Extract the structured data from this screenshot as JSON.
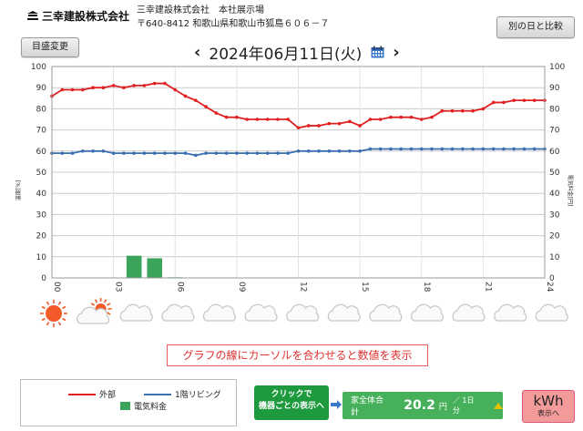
{
  "header": {
    "logo_text": "三幸建設株式会社",
    "company_name": "三幸建設株式会社　本社展示場",
    "address": "〒640-8412 和歌山県和歌山市狐島６０６－７",
    "compare_button": "別の日と比較",
    "scale_button": "目盛変更"
  },
  "date": {
    "label": "2024年06月11日(火)",
    "prev": "‹",
    "next": "›",
    "calendar_icon": "calendar-icon"
  },
  "chart_data": {
    "type": "line",
    "x_ticks": [
      "00",
      "03",
      "06",
      "09",
      "12",
      "15",
      "18",
      "21",
      "24"
    ],
    "xlim": [
      0,
      24
    ],
    "ylim": [
      0,
      100
    ],
    "y_ticks": [
      0,
      10,
      20,
      30,
      40,
      50,
      60,
      70,
      80,
      90,
      100
    ],
    "ylabel_left": "温度[%]",
    "ylabel_right": "電気料金[円]",
    "grid": true,
    "series": [
      {
        "name": "外部",
        "color": "#e02020",
        "x": [
          0,
          0.5,
          1,
          1.5,
          2,
          2.5,
          3,
          3.5,
          4,
          4.5,
          5,
          5.5,
          6,
          6.5,
          7,
          7.5,
          8,
          8.5,
          9,
          9.5,
          10,
          10.5,
          11,
          11.5,
          12,
          12.5,
          13,
          13.5,
          14,
          14.5,
          15,
          15.5,
          16,
          16.5,
          17,
          17.5,
          18,
          18.5,
          19,
          19.5,
          20,
          20.5,
          21,
          21.5,
          22,
          22.5,
          23,
          23.5,
          24
        ],
        "values": [
          86,
          89,
          89,
          89,
          90,
          90,
          91,
          90,
          91,
          91,
          92,
          92,
          89,
          86,
          84,
          81,
          78,
          76,
          76,
          75,
          75,
          75,
          75,
          75,
          71,
          72,
          72,
          73,
          73,
          74,
          72,
          75,
          75,
          76,
          76,
          76,
          75,
          76,
          79,
          79,
          79,
          79,
          80,
          83,
          83,
          84,
          84,
          84,
          84
        ]
      },
      {
        "name": "1階リビング",
        "color": "#3a6fb0",
        "x": [
          0,
          0.5,
          1,
          1.5,
          2,
          2.5,
          3,
          3.5,
          4,
          4.5,
          5,
          5.5,
          6,
          6.5,
          7,
          7.5,
          8,
          8.5,
          9,
          9.5,
          10,
          10.5,
          11,
          11.5,
          12,
          12.5,
          13,
          13.5,
          14,
          14.5,
          15,
          15.5,
          16,
          16.5,
          17,
          17.5,
          18,
          18.5,
          19,
          19.5,
          20,
          20.5,
          21,
          21.5,
          22,
          22.5,
          23,
          23.5,
          24
        ],
        "values": [
          59,
          59,
          59,
          60,
          60,
          60,
          59,
          59,
          59,
          59,
          59,
          59,
          59,
          59,
          58,
          59,
          59,
          59,
          59,
          59,
          59,
          59,
          59,
          59,
          60,
          60,
          60,
          60,
          60,
          60,
          60,
          61,
          61,
          61,
          61,
          61,
          61,
          61,
          61,
          61,
          61,
          61,
          61,
          61,
          61,
          61,
          61,
          61,
          61
        ]
      },
      {
        "name": "電気料金",
        "type": "bar",
        "color": "#3aa55a",
        "x": [
          4,
          5,
          6
        ],
        "values": [
          10.5,
          9.3,
          0.3
        ]
      }
    ]
  },
  "weather": [
    "sunny-icon",
    "partly-cloudy-icon",
    "cloudy-icon",
    "cloudy-icon",
    "cloudy-icon",
    "cloudy-icon",
    "cloudy-icon",
    "cloudy-icon",
    "cloudy-icon",
    "cloudy-icon",
    "cloudy-icon",
    "cloudy-icon",
    "cloudy-icon"
  ],
  "hint": "グラフの線にカーソルを合わせると数値を表示",
  "legend": {
    "outdoor": "外部",
    "living": "1階リビング",
    "cost": "電気料金"
  },
  "device_button": {
    "line1": "クリックで",
    "line2": "機器ごとの表示へ"
  },
  "total": {
    "label": "家全体合計",
    "value": "20.2",
    "unit": "円",
    "per": "／ 1日分"
  },
  "kwh_button": {
    "main": "kWh",
    "sub": "表示へ"
  }
}
